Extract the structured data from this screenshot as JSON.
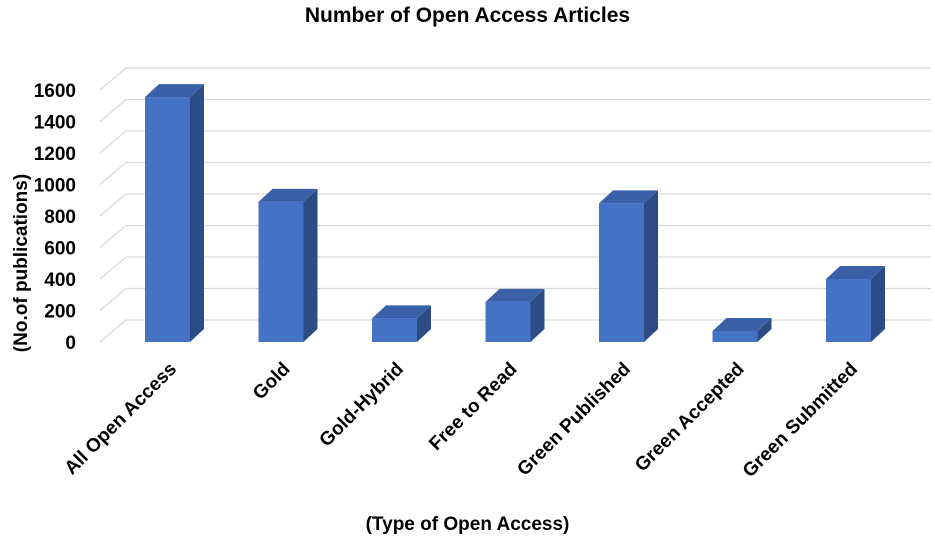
{
  "chart_data": {
    "type": "bar",
    "title": "Number of Open Access Articles",
    "xlabel": "(Type of Open Access)",
    "ylabel": "(No.of publications)",
    "categories": [
      "All Open Access",
      "Gold",
      "Gold-Hybrid",
      "Free to Read",
      "Green Published",
      "Green Accepted",
      "Green Submitted"
    ],
    "values": [
      1555,
      890,
      150,
      255,
      880,
      70,
      400
    ],
    "ylim": [
      0,
      1600
    ],
    "yticks": [
      0,
      200,
      400,
      600,
      800,
      1000,
      1200,
      1400,
      1600
    ],
    "grid": true,
    "style": "3d-column",
    "colors": {
      "bar_front": "#4472c4",
      "bar_top": "#3a61a8",
      "bar_side": "#2d4b85",
      "grid": "#d9d9d9"
    }
  }
}
